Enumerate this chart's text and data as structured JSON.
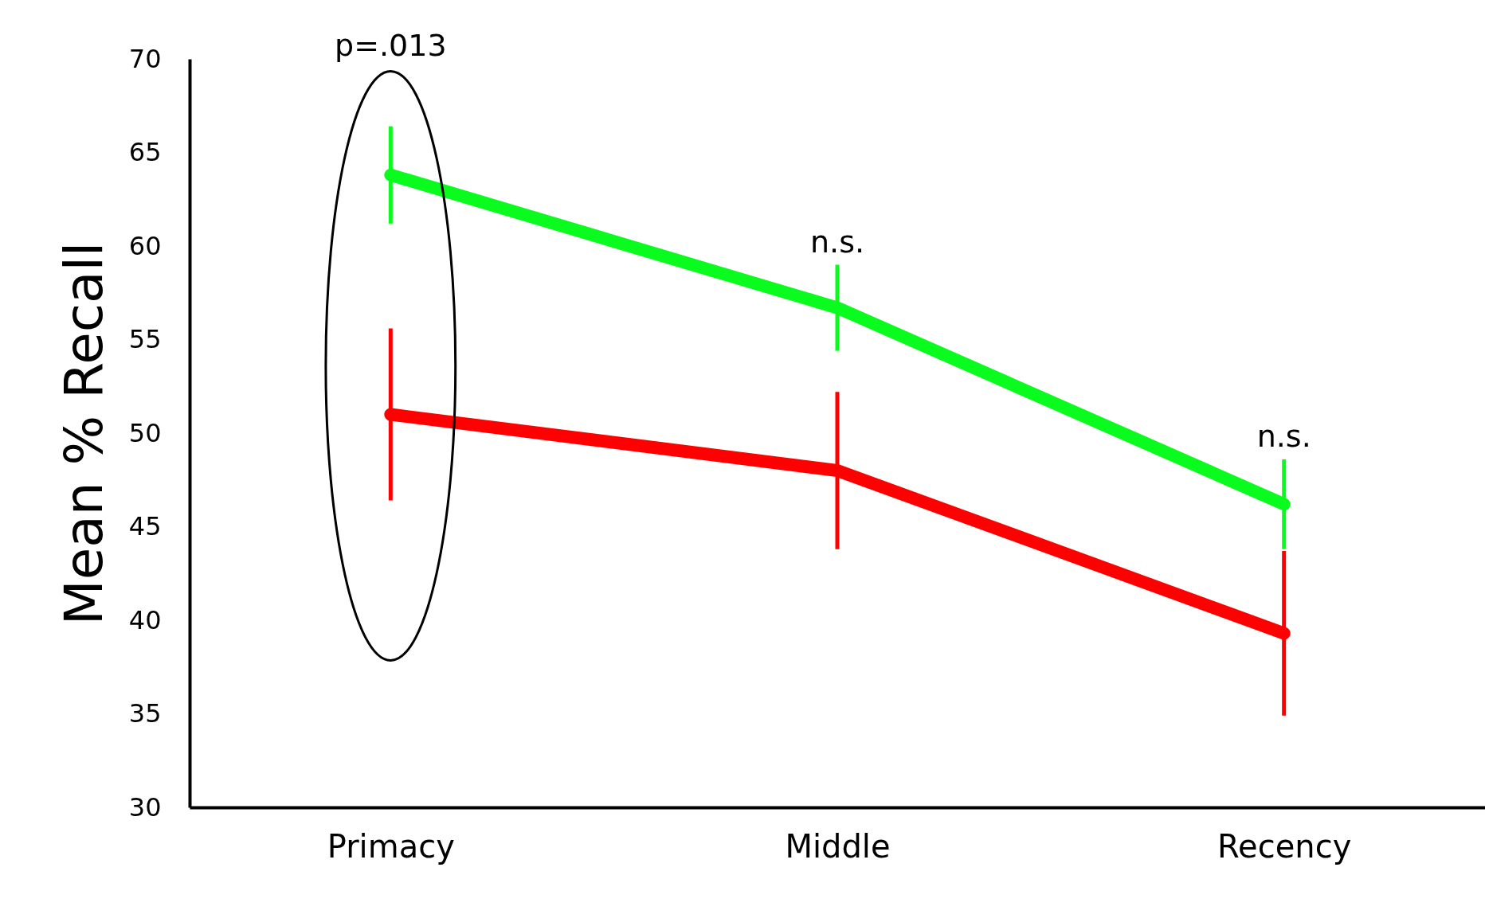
{
  "chart_data": {
    "type": "line",
    "ylabel": "Mean % Recall",
    "categories": [
      "Primacy",
      "Middle",
      "Recency"
    ],
    "series": [
      {
        "color": "#0afc1e",
        "values": [
          63.8,
          56.7,
          46.2
        ],
        "errors": [
          2.6,
          2.3,
          2.4
        ]
      },
      {
        "color": "#ff0000",
        "values": [
          51.0,
          48.0,
          39.3
        ],
        "errors": [
          4.6,
          4.2,
          4.4
        ]
      }
    ],
    "ylim": [
      30,
      70
    ],
    "yticks": [
      30,
      35,
      40,
      45,
      50,
      55,
      60,
      65,
      70
    ],
    "line_style": "solid",
    "annotations": [
      "p=.013",
      "n.s.",
      "n.s."
    ]
  }
}
